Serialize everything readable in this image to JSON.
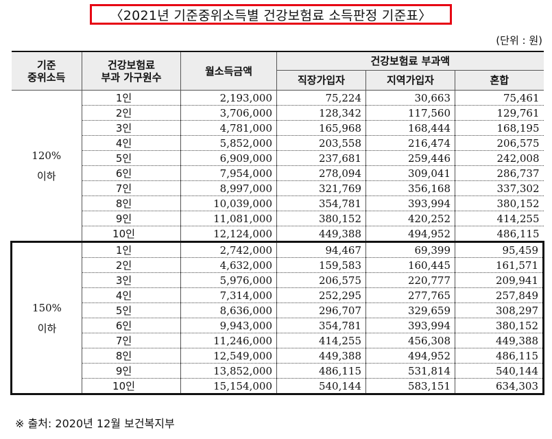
{
  "title": "〈2021년 기준중위소득별 건강보험료 소득판정 기준표〉",
  "unit": "(단위 : 원)",
  "headers": {
    "col1_line1": "기준",
    "col1_line2": "중위소득",
    "col2_line1": "건강보험료",
    "col2_line2": "부과 가구원수",
    "col3": "월소득금액",
    "group": "건강보험료 부과액",
    "sub1": "직장가입자",
    "sub2": "지역가입자",
    "sub3": "혼합"
  },
  "groups": [
    {
      "pct": "120%",
      "below": "이하",
      "rows": [
        {
          "persons": "1인",
          "income": "2,193,000",
          "employee": "75,224",
          "regional": "30,663",
          "mixed": "75,461"
        },
        {
          "persons": "2인",
          "income": "3,706,000",
          "employee": "128,342",
          "regional": "117,560",
          "mixed": "129,761"
        },
        {
          "persons": "3인",
          "income": "4,781,000",
          "employee": "165,968",
          "regional": "168,444",
          "mixed": "168,195"
        },
        {
          "persons": "4인",
          "income": "5,852,000",
          "employee": "203,558",
          "regional": "216,474",
          "mixed": "206,575"
        },
        {
          "persons": "5인",
          "income": "6,909,000",
          "employee": "237,681",
          "regional": "259,446",
          "mixed": "242,008"
        },
        {
          "persons": "6인",
          "income": "7,954,000",
          "employee": "278,094",
          "regional": "309,041",
          "mixed": "286,737"
        },
        {
          "persons": "7인",
          "income": "8,997,000",
          "employee": "321,769",
          "regional": "356,168",
          "mixed": "337,302"
        },
        {
          "persons": "8인",
          "income": "10,039,000",
          "employee": "354,781",
          "regional": "393,994",
          "mixed": "380,152"
        },
        {
          "persons": "9인",
          "income": "11,081,000",
          "employee": "380,152",
          "regional": "420,252",
          "mixed": "414,255"
        },
        {
          "persons": "10인",
          "income": "12,124,000",
          "employee": "449,388",
          "regional": "494,952",
          "mixed": "486,115"
        }
      ]
    },
    {
      "pct": "150%",
      "below": "이하",
      "rows": [
        {
          "persons": "1인",
          "income": "2,742,000",
          "employee": "94,467",
          "regional": "69,399",
          "mixed": "95,459"
        },
        {
          "persons": "2인",
          "income": "4,632,000",
          "employee": "159,583",
          "regional": "160,445",
          "mixed": "161,571"
        },
        {
          "persons": "3인",
          "income": "5,976,000",
          "employee": "206,575",
          "regional": "220,777",
          "mixed": "209,941"
        },
        {
          "persons": "4인",
          "income": "7,314,000",
          "employee": "252,295",
          "regional": "277,765",
          "mixed": "257,849"
        },
        {
          "persons": "5인",
          "income": "8,636,000",
          "employee": "296,707",
          "regional": "329,659",
          "mixed": "308,297"
        },
        {
          "persons": "6인",
          "income": "9,943,000",
          "employee": "354,781",
          "regional": "393,994",
          "mixed": "380,152"
        },
        {
          "persons": "7인",
          "income": "11,246,000",
          "employee": "414,255",
          "regional": "456,308",
          "mixed": "449,388"
        },
        {
          "persons": "8인",
          "income": "12,549,000",
          "employee": "449,388",
          "regional": "494,952",
          "mixed": "486,115"
        },
        {
          "persons": "9인",
          "income": "13,852,000",
          "employee": "486,115",
          "regional": "531,814",
          "mixed": "540,144"
        },
        {
          "persons": "10인",
          "income": "15,154,000",
          "employee": "540,144",
          "regional": "583,151",
          "mixed": "634,303"
        }
      ]
    }
  ],
  "source": "※ 출처: 2020년 12월 보건복지부",
  "colors": {
    "title_border": "#e60012",
    "header_bg": "#ededed"
  }
}
